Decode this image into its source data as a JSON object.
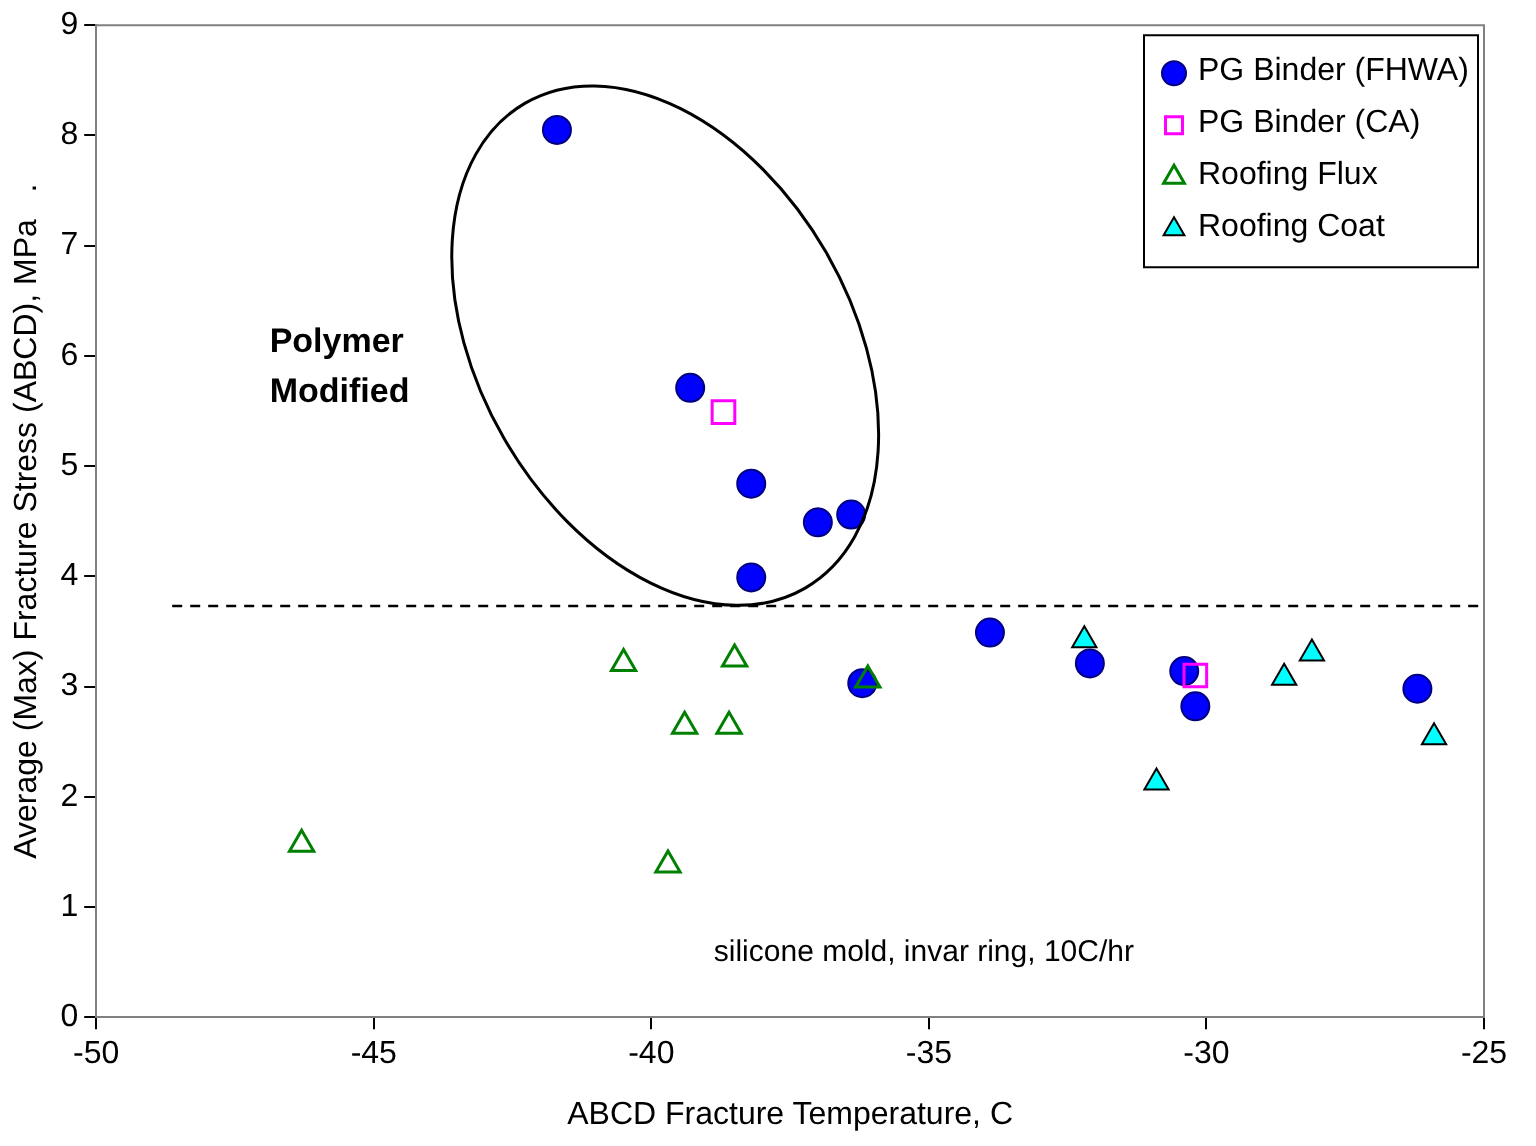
{
  "chart_data": {
    "type": "scatter",
    "xlabel": "ABCD Fracture Temperature, C",
    "ylabel": "Average (Max) Fracture Stress (ABCD), MPa   .",
    "xlim": [
      -50,
      -25
    ],
    "xticks": [
      -50,
      -45,
      -40,
      -35,
      -30,
      -25
    ],
    "ylim": [
      0,
      9
    ],
    "yticks": [
      0,
      1,
      2,
      3,
      4,
      5,
      6,
      7,
      8,
      9
    ],
    "grid": false,
    "legend": "top right",
    "series": [
      {
        "name": "PG Binder (FHWA)",
        "color": "#0000ff",
        "marker": "circle",
        "x": [
          -41.7,
          -39.3,
          -38.2,
          -37.0,
          -36.4,
          -38.2,
          -36.2,
          -33.9,
          -32.1,
          -30.4,
          -30.2,
          -26.2
        ],
        "values": [
          8.05,
          5.71,
          4.84,
          4.49,
          4.56,
          3.99,
          3.03,
          3.49,
          3.21,
          3.14,
          2.82,
          2.98
        ]
      },
      {
        "name": "PG Binder (CA)",
        "color": "#ff00ff",
        "marker": "square",
        "x": [
          -38.7,
          -30.2
        ],
        "values": [
          5.49,
          3.1
        ]
      },
      {
        "name": "Roofing Flux",
        "color": "#008000",
        "marker": "triangle",
        "x": [
          -40.5,
          -38.5,
          -39.4,
          -38.6,
          -36.1,
          -46.3,
          -39.7
        ],
        "values": [
          3.21,
          3.25,
          2.64,
          2.64,
          3.06,
          1.57,
          1.38
        ]
      },
      {
        "name": "Roofing Coat",
        "color": "#00ffff",
        "marker": "triangle",
        "x": [
          -32.2,
          -30.9,
          -28.6,
          -28.1,
          -25.9
        ],
        "values": [
          3.42,
          2.13,
          3.08,
          3.3,
          2.54
        ]
      }
    ],
    "ref_lines": [
      {
        "axis": "y",
        "value": 3.73,
        "line_style": "dashed",
        "color": "#000000"
      }
    ],
    "annotations": [
      "Polymer\nModified",
      "silicone mold, invar ring, 10C/hr"
    ]
  }
}
